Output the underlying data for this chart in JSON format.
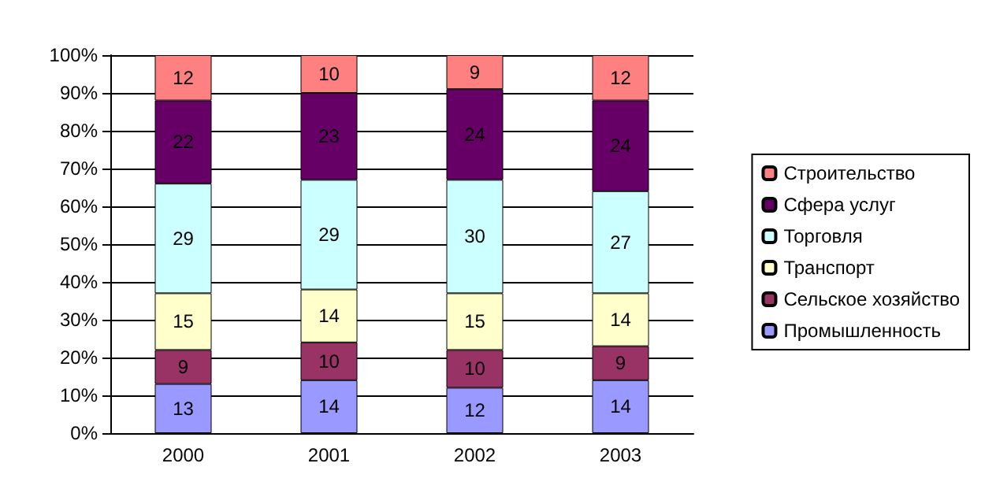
{
  "chart_data": {
    "type": "bar",
    "stacked": true,
    "categories": [
      "2000",
      "2001",
      "2002",
      "2003"
    ],
    "series": [
      {
        "name": "Промышленность",
        "color": "#9999ff",
        "values": [
          13,
          14,
          12,
          14
        ]
      },
      {
        "name": "Сельское хозяйство",
        "color": "#993366",
        "values": [
          9,
          10,
          10,
          9
        ]
      },
      {
        "name": "Транспорт",
        "color": "#ffffcc",
        "values": [
          15,
          14,
          15,
          14
        ]
      },
      {
        "name": "Торговля",
        "color": "#ccffff",
        "values": [
          29,
          29,
          30,
          27
        ]
      },
      {
        "name": "Сфера услуг",
        "color": "#660066",
        "values": [
          22,
          23,
          24,
          24
        ]
      },
      {
        "name": "Строительство",
        "color": "#ff8080",
        "values": [
          12,
          10,
          9,
          12
        ]
      }
    ],
    "ylim": [
      0,
      100
    ],
    "yticks": [
      {
        "value": 0,
        "label": "0%"
      },
      {
        "value": 10,
        "label": "10%"
      },
      {
        "value": 20,
        "label": "20%"
      },
      {
        "value": 30,
        "label": "30%"
      },
      {
        "value": 40,
        "label": "40%"
      },
      {
        "value": 50,
        "label": "50%"
      },
      {
        "value": 60,
        "label": "60%"
      },
      {
        "value": 70,
        "label": "70%"
      },
      {
        "value": 80,
        "label": "80%"
      },
      {
        "value": 90,
        "label": "90%"
      },
      {
        "value": 100,
        "label": "100%"
      }
    ],
    "grid": "y",
    "legend": "right",
    "data_labels": true
  }
}
